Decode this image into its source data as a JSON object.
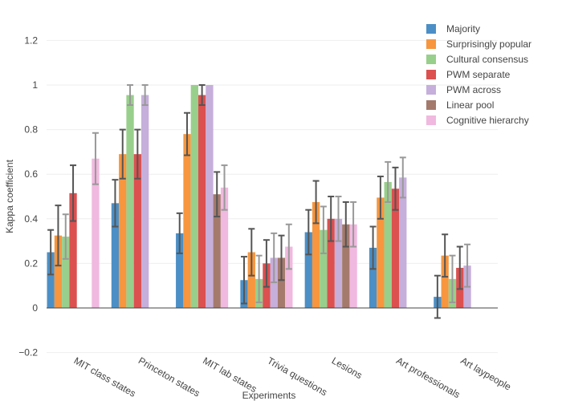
{
  "chart_data": {
    "type": "bar",
    "xlabel": "Experiments",
    "ylabel": "Kappa coefficient",
    "ylim": [
      -0.2,
      1.3
    ],
    "yticks": [
      "−0.2",
      "0",
      "0.2",
      "0.4",
      "0.6",
      "0.8",
      "1",
      "1.2"
    ],
    "ytick_values": [
      -0.2,
      0,
      0.2,
      0.4,
      0.6,
      0.8,
      1,
      1.2
    ],
    "grid": true,
    "legend_position": "top-right",
    "categories": [
      "MIT class states",
      "Princeton states",
      "MIT lab states",
      "Trivia questions",
      "Lesions",
      "Art professionals",
      "Art laypeople"
    ],
    "series": [
      {
        "name": "Majority",
        "color": "#4c8fc6",
        "values": [
          0.25,
          0.47,
          0.335,
          0.125,
          0.34,
          0.27,
          0.05
        ],
        "error": [
          0.1,
          0.105,
          0.09,
          0.105,
          0.1,
          0.095,
          0.095
        ]
      },
      {
        "name": "Surprisingly popular",
        "color": "#f7963e",
        "values": [
          0.325,
          0.69,
          0.78,
          0.25,
          0.475,
          0.495,
          0.235
        ],
        "error": [
          0.135,
          0.11,
          0.095,
          0.105,
          0.095,
          0.095,
          0.095
        ]
      },
      {
        "name": "Cultural consensus",
        "color": "#98cf8c",
        "values": [
          0.32,
          0.955,
          1.0,
          0.13,
          0.35,
          0.565,
          0.13
        ],
        "error": [
          0.1,
          0.045,
          0.0,
          0.105,
          0.105,
          0.09,
          0.105
        ]
      },
      {
        "name": "PWM separate",
        "color": "#dc5050",
        "values": [
          0.515,
          0.69,
          0.955,
          0.2,
          0.4,
          0.535,
          0.18
        ],
        "error": [
          0.125,
          0.11,
          0.045,
          0.105,
          0.1,
          0.095,
          0.095
        ]
      },
      {
        "name": "PWM across",
        "color": "#c6afdb",
        "values": [
          null,
          0.955,
          1.0,
          0.225,
          0.4,
          0.585,
          0.19
        ],
        "error": [
          null,
          0.045,
          0.0,
          0.11,
          0.1,
          0.09,
          0.095
        ]
      },
      {
        "name": "Linear pool",
        "color": "#a47a6d",
        "values": [
          null,
          null,
          0.51,
          0.225,
          0.375,
          null,
          null
        ],
        "error": [
          null,
          null,
          0.1,
          0.1,
          0.1,
          null,
          null
        ]
      },
      {
        "name": "Cognitive hierarchy",
        "color": "#f0b9df",
        "values": [
          0.67,
          null,
          0.54,
          0.275,
          0.375,
          null,
          null
        ],
        "error": [
          0.115,
          null,
          0.1,
          0.1,
          0.1,
          null,
          null
        ]
      }
    ]
  }
}
